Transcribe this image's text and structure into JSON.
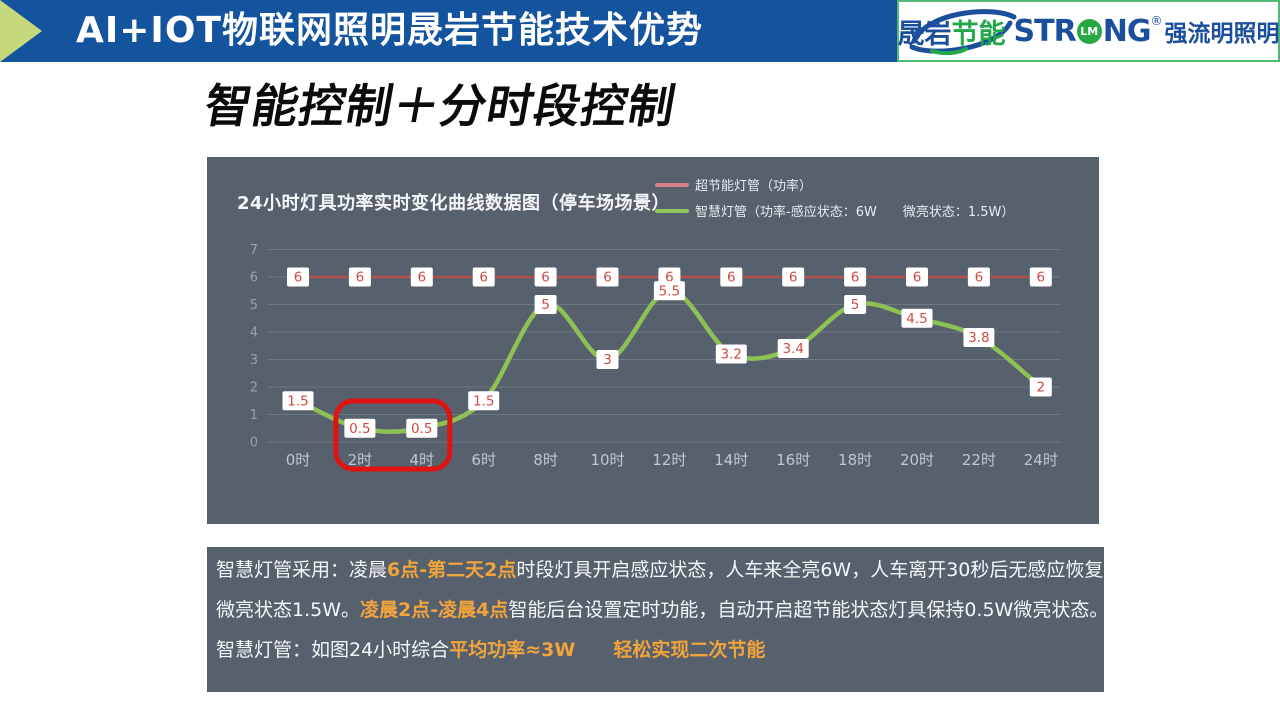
{
  "header": {
    "title": "AI+IOT物联网照明晟岩节能技术优势",
    "logo_left": {
      "blue": "晟岩",
      "green": "节能"
    },
    "logo_right": {
      "pre": "STR",
      "circle": "LM",
      "post": "NG",
      "reg": "®",
      "cn": "强流明照明"
    }
  },
  "page_title": "智能控制＋分时段控制",
  "chart": {
    "title": "24小时灯具功率实时变化曲线数据图（停车场场景）",
    "legend": [
      {
        "label": "超节能灯管（功率）",
        "color": "#D98087"
      },
      {
        "label": "智慧灯管（功率-感应状态：6W　　微亮状态：1.5W）",
        "color": "#90C65C"
      }
    ]
  },
  "chart_data": {
    "type": "line",
    "title": "24小时灯具功率实时变化曲线数据图（停车场场景）",
    "categories": [
      "0时",
      "2时",
      "4时",
      "6时",
      "8时",
      "10时",
      "12时",
      "14时",
      "16时",
      "18时",
      "20时",
      "22时",
      "24时"
    ],
    "series": [
      {
        "name": "超节能灯管（功率）",
        "color": "#B4504C",
        "values": [
          6,
          6,
          6,
          6,
          6,
          6,
          6,
          6,
          6,
          6,
          6,
          6,
          6
        ]
      },
      {
        "name": "智慧灯管（功率-感应状态：6W　　微亮状态：1.5W）",
        "color": "#8DC153",
        "values": [
          1.5,
          0.5,
          0.5,
          1.5,
          5,
          3,
          5.5,
          3.2,
          3.4,
          5,
          4.5,
          3.8,
          2
        ]
      }
    ],
    "ylim": [
      0,
      7
    ],
    "yticks": [
      0,
      1,
      2,
      3,
      4,
      5,
      6,
      7
    ],
    "xlabel": "",
    "ylabel": "",
    "grid": true,
    "legend_position": "top-right",
    "data_labels": true,
    "data_label_color": "#CF4A40",
    "annotation": {
      "type": "highlight-box",
      "from": "2时",
      "to": "4时",
      "color": "#E01212"
    }
  },
  "notes": {
    "highlight_color": "#F1A33C",
    "lines": [
      [
        {
          "t": "智慧灯管采用：凌晨",
          "hl": false
        },
        {
          "t": "6点-第二天2点",
          "hl": true
        },
        {
          "t": "时段灯具开启感应状态，人车来全亮6W，人车离开30秒后无感应恢复",
          "hl": false
        }
      ],
      [
        {
          "t": "微亮状态1.5W。",
          "hl": false
        },
        {
          "t": "凌晨2点-凌晨4点",
          "hl": true
        },
        {
          "t": "智能后台设置定时功能，自动开启超节能状态灯具保持0.5W微亮状态。",
          "hl": false
        }
      ],
      [
        {
          "t": "智慧灯管：如图24小时综合",
          "hl": false
        },
        {
          "t": "平均功率≈3W",
          "hl": true
        },
        {
          "t": "　　",
          "hl": false
        },
        {
          "t": "轻松实现二次节能",
          "hl": true
        }
      ]
    ]
  }
}
